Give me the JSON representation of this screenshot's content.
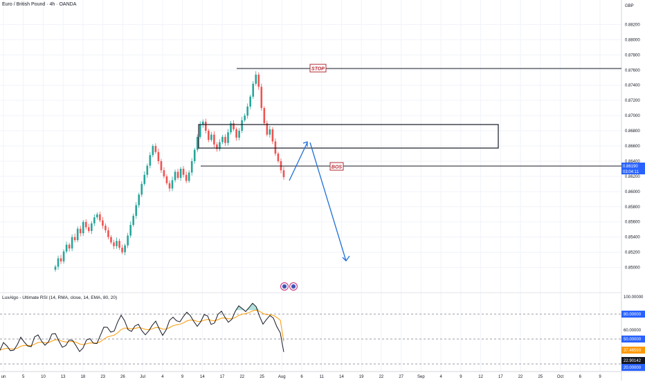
{
  "header": {
    "symbol_title": "Euro / British Pound · 4h · OANDA"
  },
  "currency": "GBP",
  "price_axis": [
    "0.88200",
    "0.88000",
    "0.87800",
    "0.87600",
    "0.87400",
    "0.87200",
    "0.87000",
    "0.86800",
    "0.86600",
    "0.86400",
    "0.86200",
    "0.86000",
    "0.85800",
    "0.85600",
    "0.85400",
    "0.85200",
    "0.85000"
  ],
  "current_price": {
    "value": "0.86190",
    "countdown": "03:04:11"
  },
  "annotations": {
    "stop_label": "STOP",
    "bos_label": "BOS"
  },
  "rsi": {
    "title": "LuxAlgo - Ultimate RSI (14, RMA, close, 14, EMA, 80, 20)",
    "axis": [
      "100.00000",
      "60.00000"
    ],
    "levels": {
      "upper": "80.00000",
      "mid": "50.00000",
      "signal": "37.46593",
      "value": "22.90142",
      "lower": "20.00000"
    }
  },
  "time_axis": [
    "un",
    "5",
    "10",
    "13",
    "18",
    "23",
    "26",
    "Jul",
    "4",
    "9",
    "14",
    "17",
    "22",
    "25",
    "Aug",
    "6",
    "11",
    "14",
    "19",
    "22",
    "27",
    "Sep",
    "4",
    "9",
    "12",
    "17",
    "22",
    "25",
    "Oct",
    "6",
    "9"
  ],
  "colors": {
    "up": "#26a69a",
    "down": "#ef5350",
    "stop_tag": "#b22833",
    "arrow": "#1e6fd9",
    "rsi_fill": "#26a69a",
    "signal": "#ff9800",
    "axis_tag": "#2962ff"
  },
  "chart_data": {
    "type": "candlestick",
    "symbol": "EUR/GBP",
    "interval": "4h",
    "ylim": [
      0.8485,
      0.8835
    ],
    "closes": [
      0.8501,
      0.8512,
      0.8508,
      0.8521,
      0.853,
      0.8525,
      0.854,
      0.8536,
      0.8551,
      0.8545,
      0.856,
      0.8553,
      0.8548,
      0.8558,
      0.8566,
      0.857,
      0.8562,
      0.8555,
      0.8549,
      0.854,
      0.8533,
      0.8528,
      0.8535,
      0.8526,
      0.852,
      0.8529,
      0.8542,
      0.8556,
      0.8568,
      0.8582,
      0.8596,
      0.861,
      0.8622,
      0.8634,
      0.8648,
      0.866,
      0.8652,
      0.864,
      0.8628,
      0.862,
      0.8611,
      0.8604,
      0.8615,
      0.8626,
      0.8618,
      0.863,
      0.8622,
      0.8614,
      0.8625,
      0.864,
      0.8655,
      0.8672,
      0.8688,
      0.8692,
      0.868,
      0.8668,
      0.8675,
      0.8662,
      0.8656,
      0.8665,
      0.8672,
      0.8664,
      0.8678,
      0.869,
      0.8682,
      0.8671,
      0.868,
      0.8694,
      0.87,
      0.8712,
      0.8725,
      0.8742,
      0.8754,
      0.8738,
      0.871,
      0.869,
      0.8675,
      0.8682,
      0.8666,
      0.865,
      0.864,
      0.8628,
      0.8619
    ],
    "annotations": {
      "stop_level": 0.876,
      "bos_level": 0.864,
      "supply_zone": [
        0.8662,
        0.869
      ]
    },
    "rsi": {
      "upper": 80,
      "mid": 50,
      "lower": 20,
      "value": 22.9,
      "signal": 37.47
    }
  }
}
